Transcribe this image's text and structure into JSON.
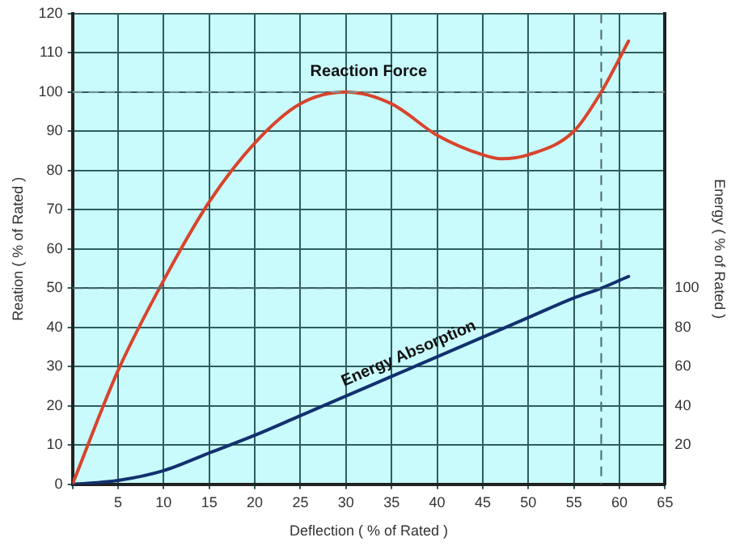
{
  "chart_data": {
    "type": "line",
    "xlabel": "Deflection ( % of Rated )",
    "ylabel": "Reation ( % of Rated )",
    "y2label": "Energy ( % of Rated )",
    "xlim": [
      0,
      65
    ],
    "xticks": [
      {
        "value": 0,
        "label": null
      },
      5,
      10,
      15,
      20,
      25,
      30,
      35,
      40,
      45,
      50,
      55,
      60,
      65
    ],
    "ylim": [
      0,
      120
    ],
    "yticks": [
      0,
      10,
      20,
      30,
      40,
      50,
      60,
      70,
      80,
      90,
      100,
      110,
      120
    ],
    "y2lim": [
      0,
      240
    ],
    "y2ticks": [
      20,
      40,
      60,
      80,
      100
    ],
    "grid": true,
    "legend": false,
    "marker": "none",
    "line_style": "solid",
    "series": [
      {
        "name": "Reaction Force",
        "color": "#d8442c",
        "x": [
          0,
          5,
          10,
          15,
          20,
          25,
          30,
          35,
          40,
          45,
          47,
          50,
          55,
          58,
          61
        ],
        "values": [
          0,
          29,
          52,
          72,
          87,
          97,
          100,
          97,
          89,
          84,
          83,
          84,
          90,
          100,
          113
        ]
      },
      {
        "name": "Energy Absorption",
        "color": "#12306e",
        "axis": "y2",
        "x": [
          0,
          5,
          10,
          15,
          20,
          25,
          30,
          35,
          40,
          45,
          50,
          55,
          58,
          61
        ],
        "values": [
          0,
          2,
          7,
          16,
          25,
          35,
          45,
          55,
          65,
          75,
          85,
          95,
          100,
          106
        ]
      }
    ],
    "ref_lines": [
      {
        "axis": "y",
        "value": 100,
        "color": "#7a9a9a",
        "line_style": "dashed"
      },
      {
        "axis": "y2",
        "value": 100,
        "color": "#4a6a6a",
        "line_style": "dashed"
      },
      {
        "axis": "x",
        "value": 58,
        "color": "#4a6a6a",
        "line_style": "dashed"
      }
    ]
  }
}
